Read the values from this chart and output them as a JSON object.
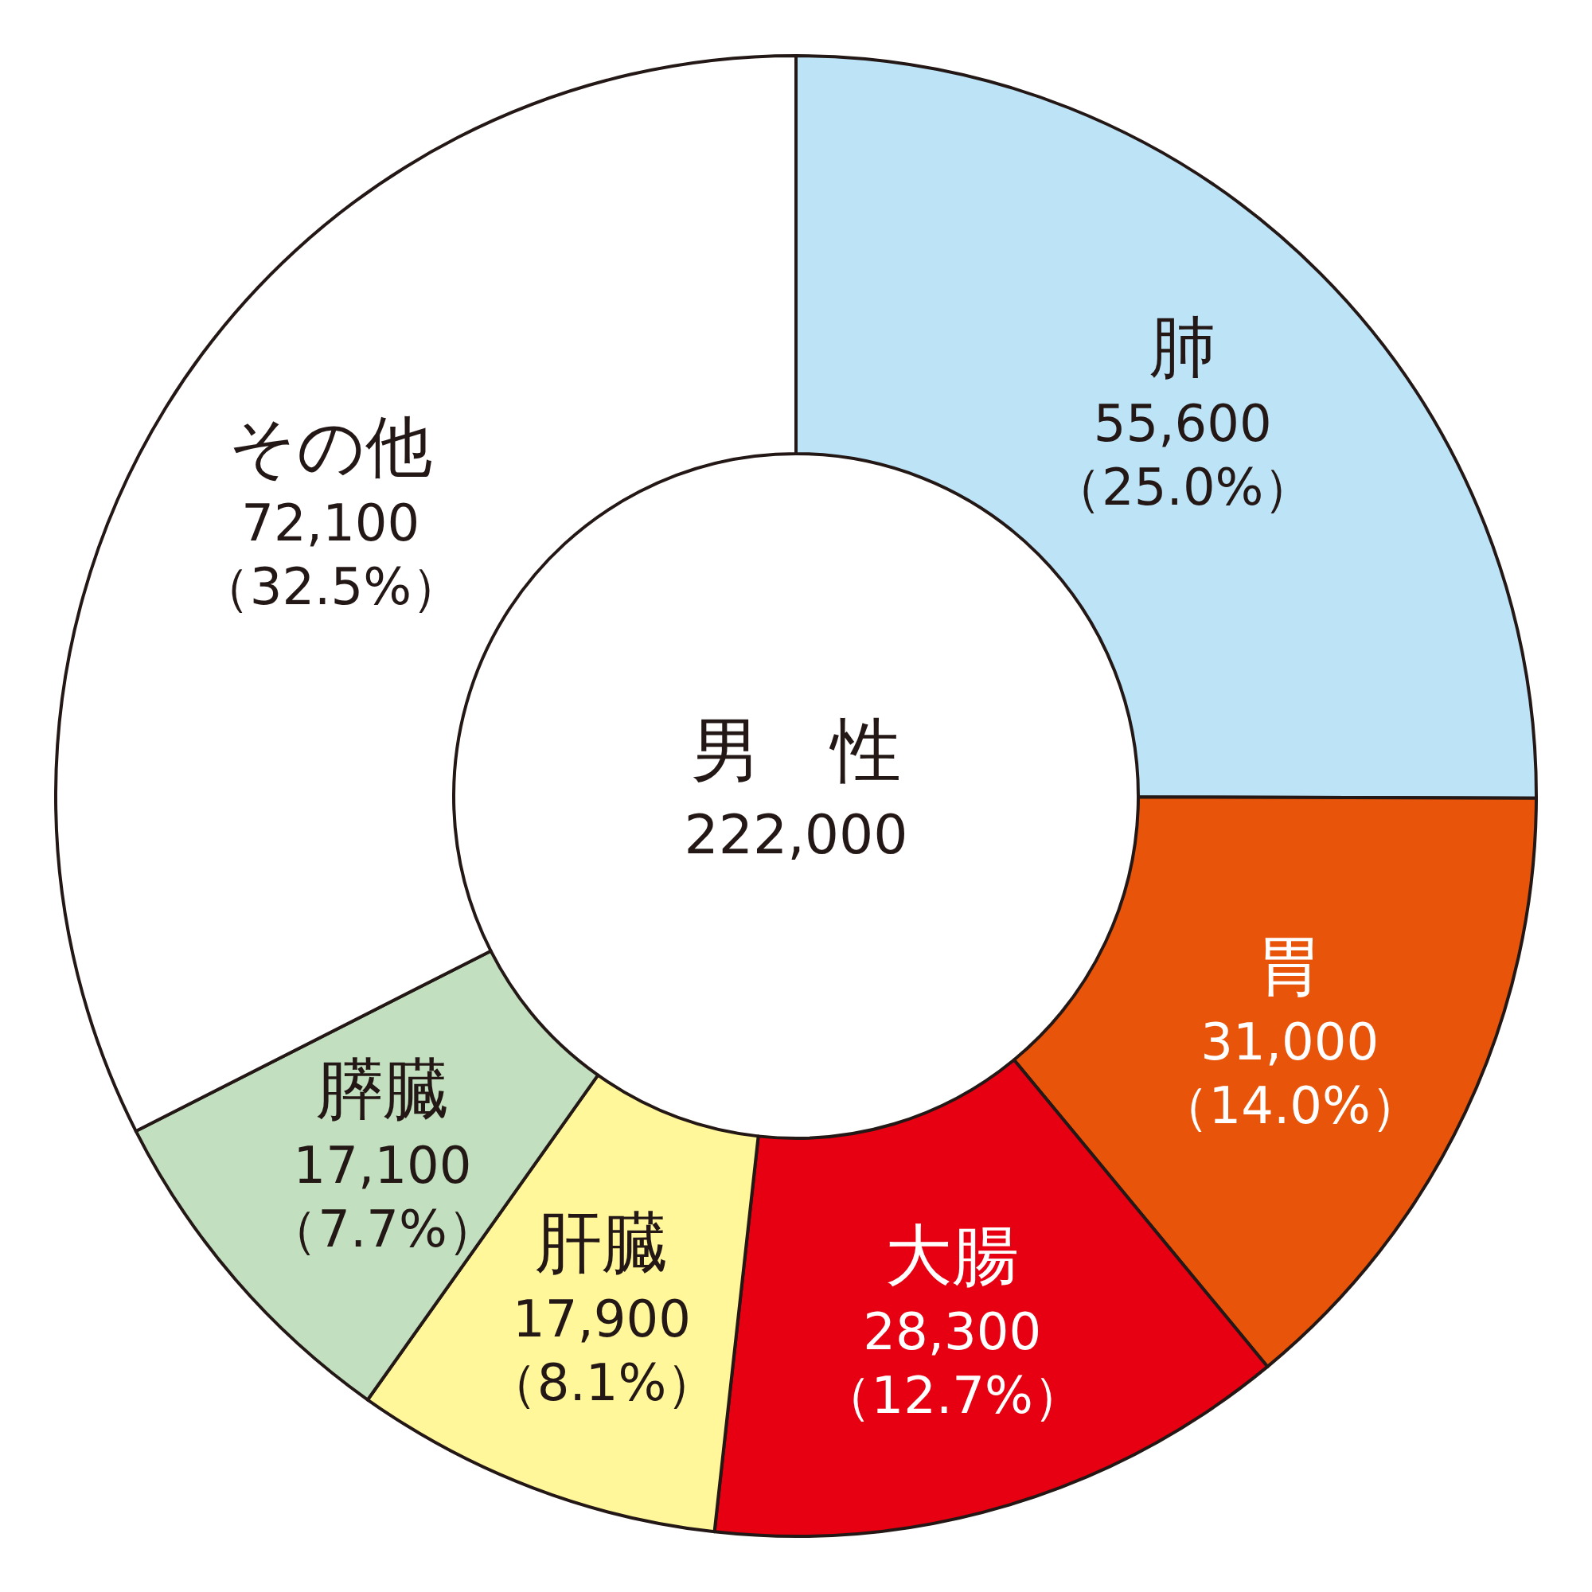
{
  "chart_data": {
    "type": "donut",
    "title": "男　性",
    "subtitle": "222,000",
    "categories": [
      "肺",
      "胃",
      "大腸",
      "肝臓",
      "膵臓",
      "その他"
    ],
    "values": [
      55600,
      31000,
      28300,
      17900,
      17100,
      72100
    ],
    "value_labels": [
      "55,600\n（25.0%）",
      "31,000\n（14.0%）",
      "28,300\n（12.7%）",
      "17,900\n（8.1%）",
      "17,100\n（7.7%）",
      "72,100\n（32.5%）"
    ],
    "colors": [
      "#bde3f7",
      "#e8550a",
      "#e60012",
      "#fff799",
      "#c2dfc0",
      "#ffffff"
    ],
    "legend": false
  }
}
